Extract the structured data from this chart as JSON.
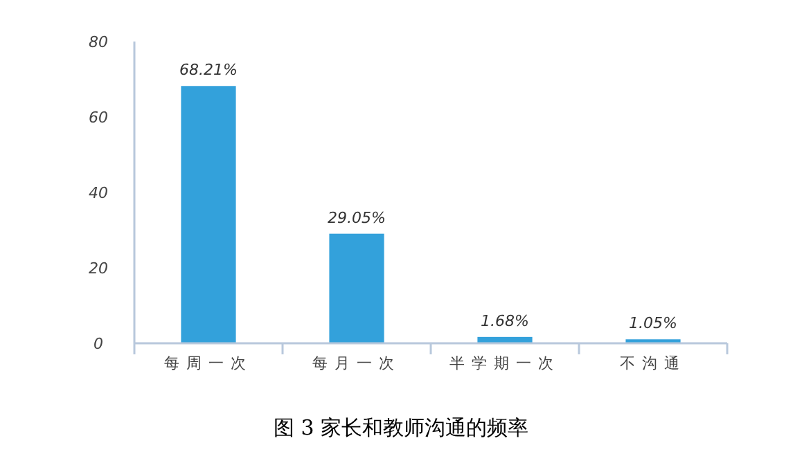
{
  "chart_data": {
    "type": "bar",
    "title": "图 3  家长和教师沟通的频率",
    "categories": [
      "每周一次",
      "每月一次",
      "半学期一次",
      "不沟通"
    ],
    "values": [
      68.21,
      29.05,
      1.68,
      1.05
    ],
    "value_labels": [
      "68.21%",
      "29.05%",
      "1.68%",
      "1.05%"
    ],
    "color": "#33a1db",
    "ylim": [
      0,
      80
    ],
    "yticks": [
      0,
      20,
      40,
      60,
      80
    ],
    "grid": false
  }
}
